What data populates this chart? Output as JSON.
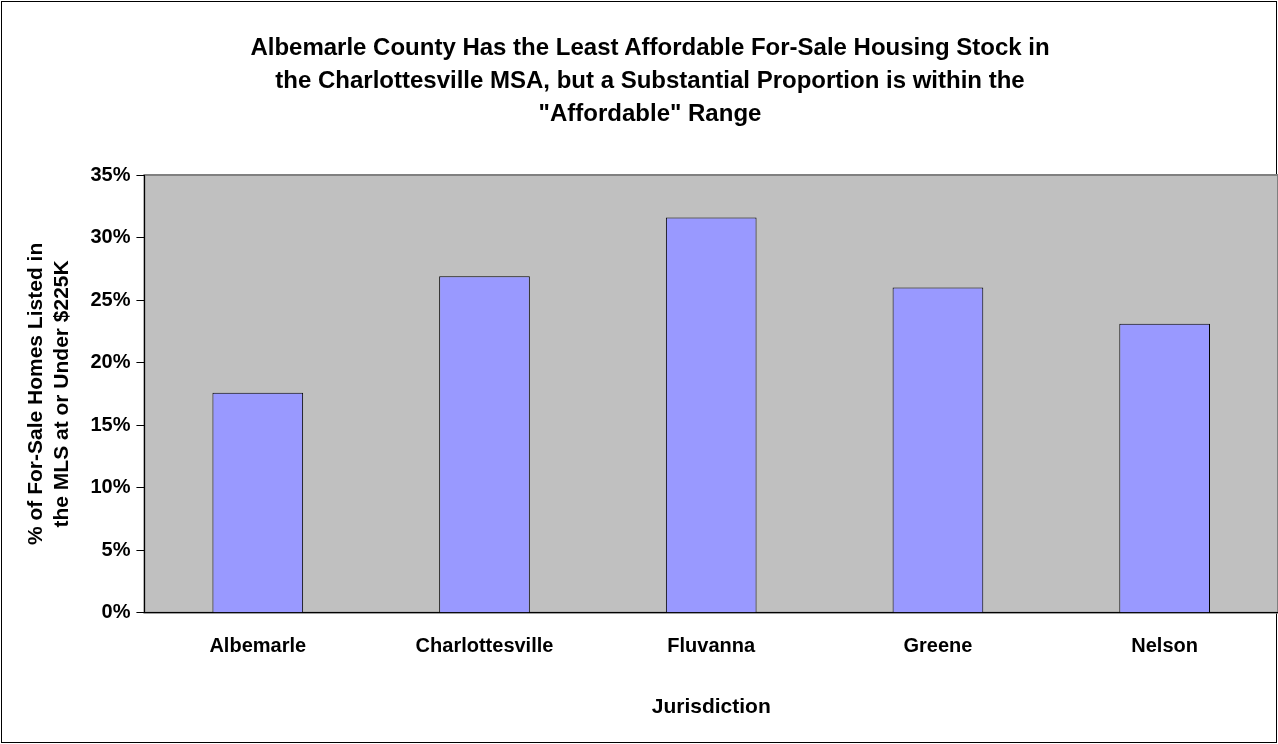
{
  "chart_data": {
    "type": "bar",
    "title": "Albemarle County Has the Least Affordable For-Sale Housing Stock in the Charlottesville MSA, but a Substantial Proportion is within the \"Affordable\" Range",
    "xlabel": "Jurisdiction",
    "ylabel": "% of For-Sale Homes Listed in the MLS at or Under $225K",
    "categories": [
      "Albemarle",
      "Charlottesville",
      "Fluvanna",
      "Greene",
      "Nelson"
    ],
    "values": [
      17.6,
      26.9,
      31.6,
      26.0,
      23.1
    ],
    "color": "#9999ff",
    "ylim": [
      0,
      35
    ],
    "yticks": [
      {
        "value": 0,
        "label": "0%"
      },
      {
        "value": 5,
        "label": "5%"
      },
      {
        "value": 10,
        "label": "10%"
      },
      {
        "value": 15,
        "label": "15%"
      },
      {
        "value": 20,
        "label": "20%"
      },
      {
        "value": 25,
        "label": "25%"
      },
      {
        "value": 30,
        "label": "30%"
      },
      {
        "value": 35,
        "label": "35%"
      }
    ],
    "grid": false,
    "legend": false
  }
}
